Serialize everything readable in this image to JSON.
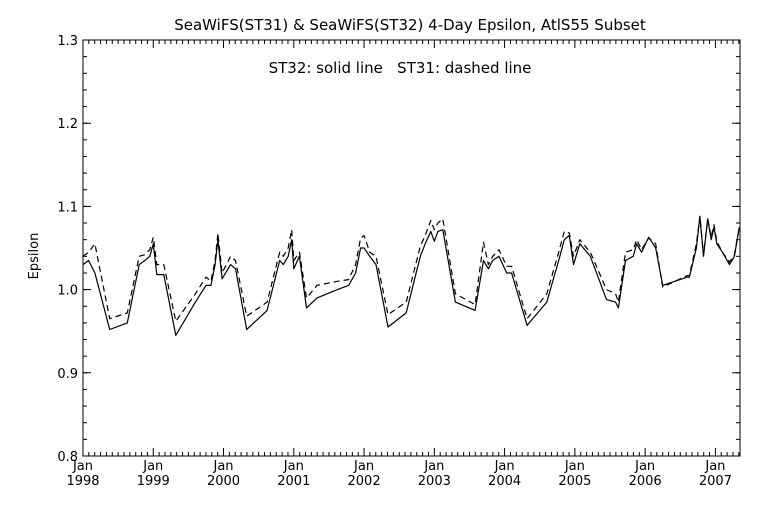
{
  "chart_data": {
    "type": "line",
    "title": "SeaWiFS(ST31) & SeaWiFS(ST32) 4-Day Epsilon, AtlS55 Subset",
    "annotation": "ST32: solid line   ST31: dashed line",
    "xlabel": "",
    "ylabel": "Epsilon",
    "ylim": [
      0.8,
      1.3
    ],
    "yticks": [
      "0.8",
      "0.9",
      "1.0",
      "1.1",
      "1.2",
      "1.3"
    ],
    "xlim": [
      1998.0,
      2007.35
    ],
    "xticks": [
      {
        "month": "Jan",
        "year": "1998"
      },
      {
        "month": "Jan",
        "year": "1999"
      },
      {
        "month": "Jan",
        "year": "2000"
      },
      {
        "month": "Jan",
        "year": "2001"
      },
      {
        "month": "Jan",
        "year": "2002"
      },
      {
        "month": "Jan",
        "year": "2003"
      },
      {
        "month": "Jan",
        "year": "2004"
      },
      {
        "month": "Jan",
        "year": "2005"
      },
      {
        "month": "Jan",
        "year": "2006"
      },
      {
        "month": "Jan",
        "year": "2007"
      }
    ],
    "grid": false,
    "series": [
      {
        "name": "ST32",
        "style": "solid",
        "color": "#000000",
        "x": [
          1998.0,
          1998.08,
          1998.17,
          1998.38,
          1998.63,
          1998.8,
          1998.88,
          1998.95,
          1999.0,
          1999.05,
          1999.15,
          1999.32,
          1999.6,
          1999.75,
          1999.82,
          1999.88,
          1999.92,
          1999.98,
          2000.1,
          2000.17,
          2000.33,
          2000.62,
          2000.8,
          2000.85,
          2000.92,
          2000.97,
          2001.0,
          2001.08,
          2001.18,
          2001.33,
          2001.62,
          2001.78,
          2001.88,
          2001.95,
          2002.0,
          2002.08,
          2002.17,
          2002.34,
          2002.6,
          2002.8,
          2002.87,
          2002.95,
          2003.0,
          2003.05,
          2003.12,
          2003.3,
          2003.58,
          2003.7,
          2003.77,
          2003.83,
          2003.92,
          2004.03,
          2004.1,
          2004.32,
          2004.6,
          2004.77,
          2004.85,
          2004.92,
          2004.98,
          2005.07,
          2005.22,
          2005.45,
          2005.58,
          2005.62,
          2005.72,
          2005.83,
          2005.88,
          2005.95,
          2006.05,
          2006.15,
          2006.25,
          2006.6,
          2006.63,
          2006.73,
          2006.78,
          2006.83,
          2006.89,
          2006.94,
          2006.98,
          2007.02,
          2007.1,
          2007.2,
          2007.27,
          2007.34
        ],
        "y": [
          1.03,
          1.035,
          1.02,
          0.952,
          0.96,
          1.03,
          1.035,
          1.04,
          1.055,
          1.018,
          1.018,
          0.945,
          0.985,
          1.005,
          1.005,
          1.03,
          1.06,
          1.013,
          1.03,
          1.025,
          0.952,
          0.975,
          1.035,
          1.03,
          1.04,
          1.06,
          1.025,
          1.04,
          0.978,
          0.99,
          1.0,
          1.005,
          1.02,
          1.05,
          1.05,
          1.04,
          1.03,
          0.955,
          0.972,
          1.04,
          1.055,
          1.07,
          1.058,
          1.07,
          1.072,
          0.985,
          0.975,
          1.035,
          1.025,
          1.035,
          1.04,
          1.02,
          1.02,
          0.957,
          0.985,
          1.035,
          1.06,
          1.065,
          1.03,
          1.055,
          1.04,
          0.988,
          0.985,
          0.978,
          1.035,
          1.04,
          1.055,
          1.045,
          1.063,
          1.05,
          1.005,
          1.015,
          1.015,
          1.05,
          1.088,
          1.04,
          1.085,
          1.06,
          1.075,
          1.055,
          1.045,
          1.03,
          1.04,
          1.075
        ]
      },
      {
        "name": "ST31",
        "style": "dashed",
        "color": "#000000",
        "x": [
          1998.0,
          1998.08,
          1998.17,
          1998.38,
          1998.63,
          1998.8,
          1998.88,
          1998.95,
          1999.0,
          1999.05,
          1999.15,
          1999.32,
          1999.6,
          1999.75,
          1999.82,
          1999.88,
          1999.92,
          1999.98,
          2000.1,
          2000.17,
          2000.33,
          2000.62,
          2000.8,
          2000.85,
          2000.92,
          2000.97,
          2001.0,
          2001.08,
          2001.18,
          2001.33,
          2001.62,
          2001.78,
          2001.88,
          2001.95,
          2002.0,
          2002.08,
          2002.17,
          2002.34,
          2002.6,
          2002.8,
          2002.87,
          2002.95,
          2003.0,
          2003.05,
          2003.12,
          2003.3,
          2003.58,
          2003.7,
          2003.77,
          2003.83,
          2003.92,
          2004.03,
          2004.1,
          2004.32,
          2004.6,
          2004.77,
          2004.85,
          2004.92,
          2004.98,
          2005.07,
          2005.22,
          2005.45,
          2005.58,
          2005.62,
          2005.72,
          2005.83,
          2005.88,
          2005.95,
          2006.05,
          2006.15,
          2006.25,
          2006.6,
          2006.63,
          2006.73,
          2006.78,
          2006.83,
          2006.89,
          2006.94,
          2006.98,
          2007.02,
          2007.1,
          2007.2,
          2007.27,
          2007.34
        ],
        "y": [
          1.04,
          1.045,
          1.055,
          0.965,
          0.972,
          1.04,
          1.042,
          1.048,
          1.063,
          1.03,
          1.03,
          0.962,
          0.995,
          1.015,
          1.01,
          1.035,
          1.068,
          1.02,
          1.04,
          1.035,
          0.968,
          0.985,
          1.045,
          1.04,
          1.05,
          1.072,
          1.035,
          1.045,
          0.99,
          1.005,
          1.01,
          1.012,
          1.03,
          1.062,
          1.065,
          1.045,
          1.04,
          0.97,
          0.985,
          1.052,
          1.065,
          1.083,
          1.072,
          1.08,
          1.085,
          0.995,
          0.982,
          1.057,
          1.03,
          1.04,
          1.048,
          1.028,
          1.028,
          0.965,
          0.995,
          1.045,
          1.07,
          1.068,
          1.04,
          1.06,
          1.045,
          1.0,
          0.995,
          0.985,
          1.045,
          1.048,
          1.06,
          1.048,
          1.062,
          1.055,
          1.003,
          1.017,
          1.017,
          1.055,
          1.088,
          1.042,
          1.085,
          1.063,
          1.078,
          1.058,
          1.045,
          1.033,
          1.042,
          1.075
        ]
      }
    ]
  }
}
